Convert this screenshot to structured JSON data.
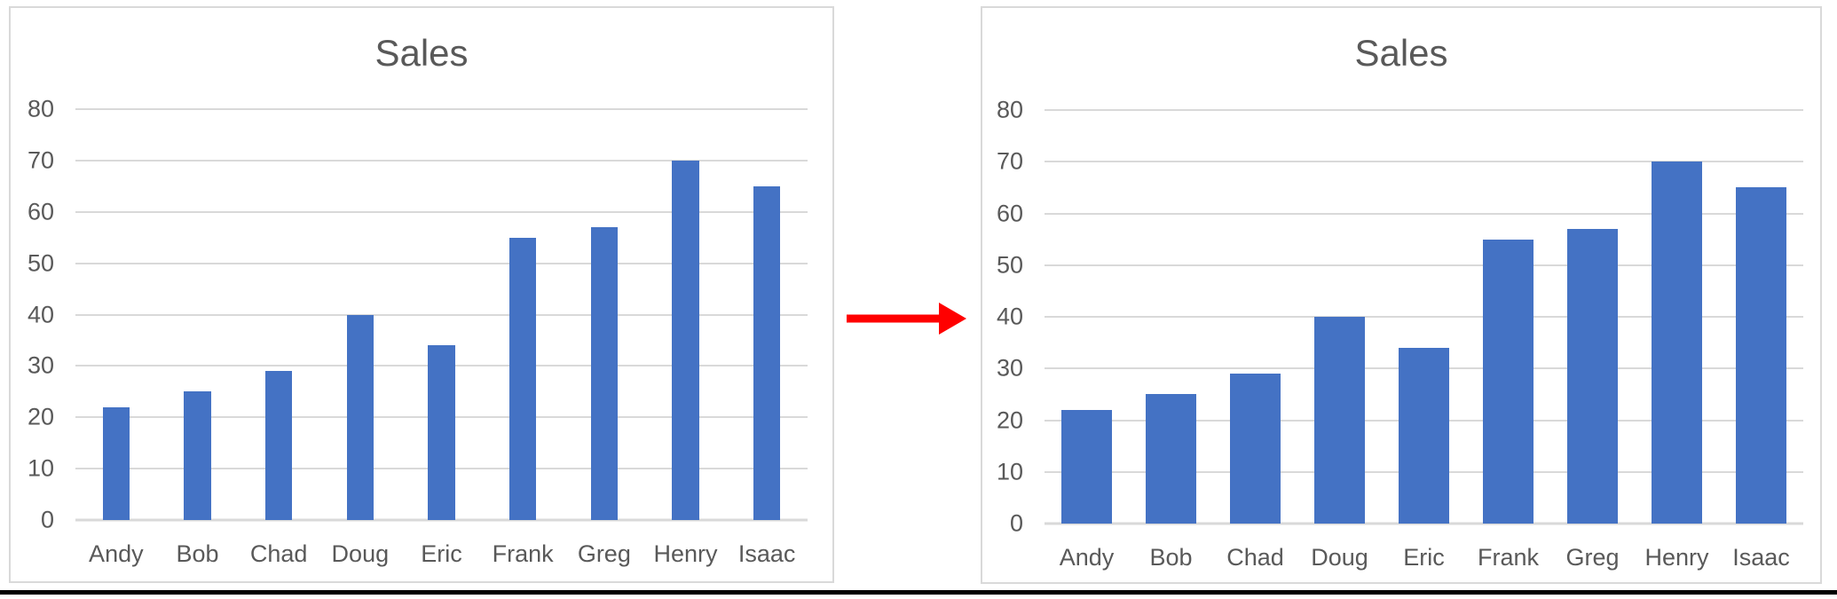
{
  "arrow": {
    "color": "#FF0000",
    "direction": "right"
  },
  "divider": {
    "color": "#000000"
  },
  "chart_data": [
    {
      "type": "bar",
      "title": "Sales",
      "categories": [
        "Andy",
        "Bob",
        "Chad",
        "Doug",
        "Eric",
        "Frank",
        "Greg",
        "Henry",
        "Isaac"
      ],
      "values": [
        22,
        25,
        29,
        40,
        34,
        55,
        57,
        70,
        65
      ],
      "xlabel": "",
      "ylabel": "",
      "ylim": [
        0,
        80
      ],
      "ytick_step": 10,
      "yticks": [
        0,
        10,
        20,
        30,
        40,
        50,
        60,
        70,
        80
      ],
      "grid": true,
      "legend": "none",
      "bar_color": "#4472C4",
      "gridline_color": "#D9D9D9",
      "text_color": "#595959",
      "bar_width_pct_of_slot": 33
    },
    {
      "type": "bar",
      "title": "Sales",
      "categories": [
        "Andy",
        "Bob",
        "Chad",
        "Doug",
        "Eric",
        "Frank",
        "Greg",
        "Henry",
        "Isaac"
      ],
      "values": [
        22,
        25,
        29,
        40,
        34,
        55,
        57,
        70,
        65
      ],
      "xlabel": "",
      "ylabel": "",
      "ylim": [
        0,
        80
      ],
      "ytick_step": 10,
      "yticks": [
        0,
        10,
        20,
        30,
        40,
        50,
        60,
        70,
        80
      ],
      "grid": true,
      "legend": "none",
      "bar_color": "#4472C4",
      "gridline_color": "#D9D9D9",
      "text_color": "#595959",
      "bar_width_pct_of_slot": 61
    }
  ]
}
